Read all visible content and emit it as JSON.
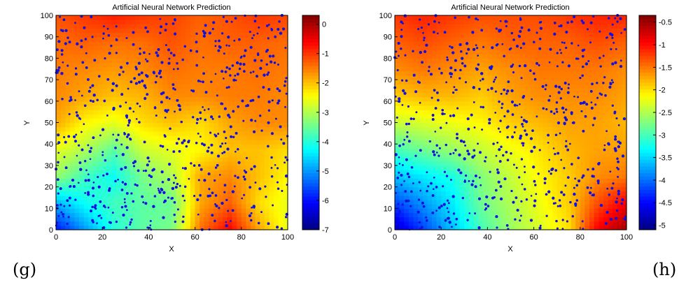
{
  "panel_labels": [
    "(g)",
    "(h)"
  ],
  "chart_data": [
    {
      "type": "heatmap",
      "title": "Artificial Neural Network Prediction",
      "xlabel": "X",
      "ylabel": "Y",
      "xlim": [
        0,
        100
      ],
      "ylim": [
        0,
        100
      ],
      "x_ticks": [
        0,
        20,
        40,
        60,
        80,
        100
      ],
      "y_ticks": [
        0,
        10,
        20,
        30,
        40,
        50,
        60,
        70,
        80,
        90,
        100
      ],
      "colorbar": {
        "range": [
          -7,
          0.3
        ],
        "ticks": [
          0,
          -1,
          -2,
          -3,
          -4,
          -5,
          -6,
          -7
        ],
        "colormap": "jet"
      },
      "grid_x": [
        0,
        12.5,
        25,
        37.5,
        50,
        62.5,
        75,
        87.5,
        100
      ],
      "grid_y": [
        0,
        12.5,
        25,
        37.5,
        50,
        62.5,
        75,
        87.5,
        100
      ],
      "values": [
        [
          -6.0,
          -5.0,
          -4.0,
          -3.6,
          -3.4,
          -1.4,
          -0.6,
          -1.8,
          -2.6
        ],
        [
          -4.8,
          -4.2,
          -3.8,
          -3.6,
          -3.5,
          -1.8,
          -1.3,
          -2.2,
          -2.6
        ],
        [
          -3.2,
          -3.8,
          -4.2,
          -3.4,
          -3.0,
          -1.8,
          -1.6,
          -2.0,
          -2.4
        ],
        [
          -2.6,
          -3.0,
          -3.6,
          -2.8,
          -2.6,
          -2.4,
          -2.0,
          -2.0,
          -2.2
        ],
        [
          -1.8,
          -2.4,
          -2.6,
          -2.2,
          -2.0,
          -2.2,
          -1.8,
          -1.6,
          -1.6
        ],
        [
          -1.6,
          -1.8,
          -2.0,
          -1.9,
          -1.6,
          -1.6,
          -1.5,
          -1.5,
          -1.6
        ],
        [
          -1.5,
          -1.6,
          -1.7,
          -1.6,
          -1.4,
          -1.5,
          -1.5,
          -1.4,
          -1.5
        ],
        [
          -1.4,
          -1.3,
          -1.4,
          -1.4,
          -1.2,
          -1.4,
          -1.3,
          -1.3,
          -1.4
        ],
        [
          -1.2,
          -1.0,
          -0.8,
          -1.0,
          -1.1,
          -1.3,
          -1.2,
          -1.0,
          -1.1
        ]
      ],
      "point_color": "#1010e0"
    },
    {
      "type": "heatmap",
      "title": "Artificial Neural Network Prediction",
      "xlabel": "X",
      "ylabel": "Y",
      "xlim": [
        0,
        100
      ],
      "ylim": [
        0,
        100
      ],
      "x_ticks": [
        0,
        20,
        40,
        60,
        80,
        100
      ],
      "y_ticks": [
        0,
        10,
        20,
        30,
        40,
        50,
        60,
        70,
        80,
        90,
        100
      ],
      "colorbar": {
        "range": [
          -5.1,
          -0.35
        ],
        "ticks": [
          -0.5,
          -1,
          -1.5,
          -2,
          -2.5,
          -3,
          -3.5,
          -4,
          -4.5,
          -5
        ],
        "colormap": "jet"
      },
      "grid_x": [
        0,
        12.5,
        25,
        37.5,
        50,
        62.5,
        75,
        87.5,
        100
      ],
      "grid_y": [
        0,
        12.5,
        25,
        37.5,
        50,
        62.5,
        75,
        87.5,
        100
      ],
      "values": [
        [
          -4.8,
          -4.2,
          -3.6,
          -3.0,
          -2.6,
          -2.3,
          -2.0,
          -0.9,
          -0.5
        ],
        [
          -4.2,
          -3.8,
          -3.4,
          -2.8,
          -2.5,
          -2.2,
          -1.9,
          -1.3,
          -0.9
        ],
        [
          -3.6,
          -3.4,
          -3.2,
          -2.7,
          -2.4,
          -2.1,
          -1.9,
          -1.6,
          -1.5
        ],
        [
          -3.0,
          -2.8,
          -2.6,
          -2.4,
          -2.2,
          -2.0,
          -1.8,
          -1.7,
          -1.7
        ],
        [
          -2.4,
          -2.3,
          -2.2,
          -2.1,
          -1.9,
          -1.8,
          -1.7,
          -1.7,
          -1.8
        ],
        [
          -1.9,
          -1.8,
          -1.8,
          -1.9,
          -1.7,
          -1.6,
          -1.6,
          -1.6,
          -1.7
        ],
        [
          -1.6,
          -1.5,
          -1.6,
          -1.7,
          -1.6,
          -1.5,
          -1.5,
          -1.5,
          -1.6
        ],
        [
          -1.4,
          -1.3,
          -1.4,
          -1.5,
          -1.4,
          -1.4,
          -1.4,
          -1.3,
          -1.4
        ],
        [
          -1.2,
          -1.1,
          -1.2,
          -1.3,
          -1.3,
          -1.3,
          -1.2,
          -1.1,
          -1.1
        ]
      ],
      "point_color": "#1010e0"
    }
  ]
}
